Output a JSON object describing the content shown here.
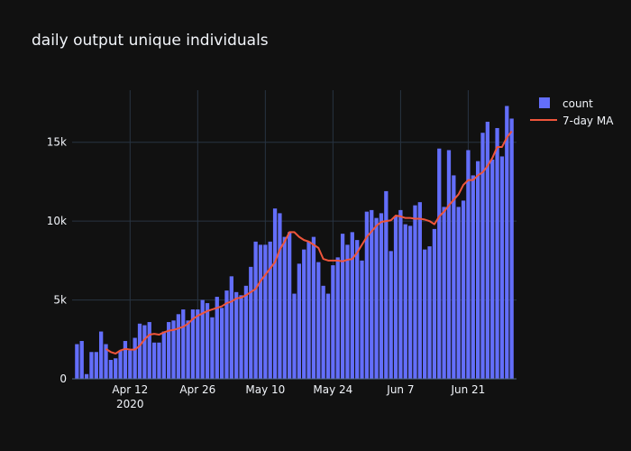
{
  "chart_data": {
    "type": "bar",
    "title": "daily output unique individuals",
    "xlabel": "",
    "ylabel": "",
    "start_date": "2020-04-01",
    "x_range": [
      "2020-03-31",
      "2020-07-01"
    ],
    "ylim": [
      0,
      18300
    ],
    "y_ticks": [
      {
        "value": 0,
        "label": "0"
      },
      {
        "value": 5000,
        "label": "5k"
      },
      {
        "value": 10000,
        "label": "10k"
      },
      {
        "value": 15000,
        "label": "15k"
      }
    ],
    "x_ticks": [
      {
        "date": "2020-04-12",
        "label": "Apr 12",
        "sublabel": "2020"
      },
      {
        "date": "2020-04-26",
        "label": "Apr 26",
        "sublabel": ""
      },
      {
        "date": "2020-05-10",
        "label": "May 10",
        "sublabel": ""
      },
      {
        "date": "2020-05-24",
        "label": "May 24",
        "sublabel": ""
      },
      {
        "date": "2020-06-07",
        "label": "Jun 7",
        "sublabel": ""
      },
      {
        "date": "2020-06-21",
        "label": "Jun 21",
        "sublabel": ""
      }
    ],
    "grid": true,
    "legend_position": "top-right",
    "series": [
      {
        "name": "count",
        "type": "bar",
        "color": "#636efa",
        "values": [
          2200,
          2400,
          300,
          1700,
          1700,
          3000,
          2200,
          1200,
          1300,
          1800,
          2400,
          1800,
          2600,
          3500,
          3400,
          3600,
          2300,
          2300,
          3000,
          3600,
          3700,
          4100,
          4400,
          3700,
          4400,
          4400,
          5000,
          4800,
          3900,
          5200,
          4500,
          5600,
          6500,
          5500,
          5300,
          5900,
          7100,
          8700,
          8500,
          8500,
          8700,
          10800,
          10500,
          9000,
          9300,
          5400,
          7300,
          8200,
          8700,
          9000,
          7400,
          5900,
          5400,
          7200,
          7700,
          9200,
          8500,
          9300,
          8800,
          7500,
          10600,
          10700,
          10200,
          10500,
          11900,
          8100,
          10300,
          10700,
          9800,
          9700,
          11000,
          11200,
          8200,
          8400,
          9500,
          14600,
          10900,
          14500,
          12900,
          10900,
          11300,
          14500,
          12900,
          13800,
          15600,
          16300,
          13900,
          15900,
          14100,
          17300,
          16500
        ]
      },
      {
        "name": "7-day MA",
        "type": "line",
        "color": "#ef553b",
        "start_index": 6,
        "values": [
          1900,
          1700,
          1600,
          1800,
          1900,
          1850,
          1850,
          2100,
          2500,
          2800,
          2850,
          2800,
          2950,
          3050,
          3100,
          3200,
          3300,
          3500,
          3800,
          4000,
          4150,
          4300,
          4400,
          4500,
          4600,
          4800,
          4900,
          5100,
          5150,
          5300,
          5500,
          5700,
          6200,
          6600,
          7000,
          7400,
          8200,
          8700,
          9300,
          9300,
          9000,
          8800,
          8700,
          8500,
          8300,
          7600,
          7500,
          7500,
          7500,
          7450,
          7550,
          7600,
          8000,
          8500,
          9000,
          9350,
          9700,
          9950,
          10000,
          10050,
          10350,
          10300,
          10200,
          10200,
          10150,
          10150,
          10100,
          10000,
          9800,
          10300,
          10600,
          11000,
          11350,
          11700,
          12300,
          12600,
          12600,
          12900,
          13100,
          13500,
          14000,
          14700,
          14700,
          15300,
          15700
        ]
      }
    ]
  }
}
